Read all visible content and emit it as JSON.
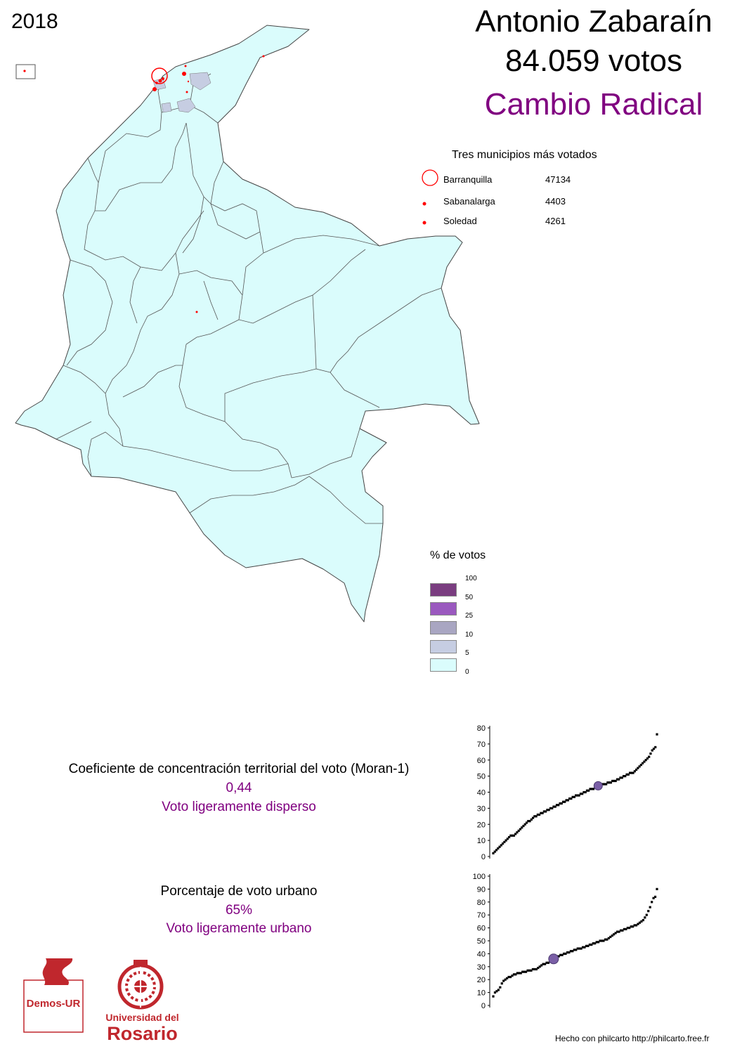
{
  "header": {
    "year": "2018",
    "candidate": "Antonio Zabaraín",
    "votes": "84.059 votos",
    "party": "Cambio Radical"
  },
  "top_municipalities": {
    "title": "Tres municipios más votados",
    "items": [
      {
        "name": "Barranquilla",
        "value": "47134"
      },
      {
        "name": "Sabanalarga",
        "value": "4403"
      },
      {
        "name": "Soledad",
        "value": "4261"
      }
    ]
  },
  "legend": {
    "title": "% de votos",
    "breaks": [
      "100",
      "50",
      "25",
      "10",
      "5",
      "0"
    ],
    "colors": [
      "#7a3d80",
      "#9a59bf",
      "#a9a6c2",
      "#c6cde2",
      "#dafcfc"
    ]
  },
  "moran": {
    "label": "Coeficiente de concentración territorial del voto (Moran-1)",
    "value": "0,44",
    "description": "Voto ligeramente disperso"
  },
  "urban": {
    "label": "Porcentaje de voto urbano",
    "value": "65%",
    "description": "Voto ligeramente urbano"
  },
  "logos": {
    "demos": "Demos-UR",
    "univ_line1": "Universidad del",
    "univ_line2": "Rosario"
  },
  "credit": "Hecho con philcarto http://philcarto.free.fr",
  "colors": {
    "accent": "#800080",
    "map_fill": "#dafcfc",
    "marker": "#ff0000",
    "brand_red": "#c0272d"
  },
  "chart_data": [
    {
      "type": "scatter",
      "title": "",
      "ylim": [
        0,
        80
      ],
      "yticks": [
        "0",
        "10",
        "20",
        "30",
        "40",
        "50",
        "60",
        "70",
        "80"
      ],
      "marker_y": 44,
      "y": [
        2,
        3,
        4,
        5,
        6,
        7,
        8,
        9,
        10,
        11,
        12,
        13,
        13,
        13,
        14,
        15,
        16,
        17,
        18,
        19,
        20,
        21,
        22,
        22,
        23,
        24,
        25,
        25,
        26,
        26,
        27,
        27,
        28,
        28,
        29,
        29,
        30,
        30,
        31,
        31,
        32,
        32,
        33,
        33,
        34,
        34,
        35,
        35,
        36,
        36,
        37,
        37,
        38,
        38,
        38,
        39,
        39,
        40,
        40,
        41,
        41,
        42,
        42,
        42,
        43,
        43,
        44,
        44,
        44,
        45,
        45,
        45,
        46,
        46,
        46,
        47,
        47,
        47,
        48,
        48,
        49,
        49,
        50,
        50,
        51,
        51,
        52,
        52,
        52,
        53,
        54,
        55,
        56,
        57,
        58,
        59,
        60,
        61,
        62,
        64,
        66,
        67,
        68,
        76
      ]
    },
    {
      "type": "scatter",
      "title": "",
      "ylim": [
        0,
        100
      ],
      "yticks": [
        "0",
        "10",
        "20",
        "30",
        "40",
        "50",
        "60",
        "70",
        "80",
        "90",
        "100"
      ],
      "marker_y": 36,
      "y": [
        7,
        10,
        11,
        12,
        14,
        17,
        19,
        20,
        21,
        22,
        22,
        23,
        24,
        24,
        25,
        25,
        25,
        26,
        26,
        26,
        27,
        27,
        27,
        28,
        28,
        28,
        29,
        30,
        31,
        32,
        32,
        33,
        33,
        34,
        35,
        36,
        37,
        38,
        38,
        39,
        39,
        40,
        40,
        41,
        41,
        42,
        42,
        43,
        43,
        44,
        44,
        44,
        45,
        45,
        46,
        46,
        47,
        47,
        48,
        48,
        49,
        49,
        50,
        50,
        50,
        51,
        51,
        52,
        53,
        54,
        55,
        56,
        57,
        57,
        58,
        58,
        59,
        59,
        60,
        60,
        61,
        61,
        62,
        62,
        63,
        64,
        65,
        66,
        68,
        70,
        73,
        76,
        80,
        83,
        84,
        90
      ]
    }
  ]
}
